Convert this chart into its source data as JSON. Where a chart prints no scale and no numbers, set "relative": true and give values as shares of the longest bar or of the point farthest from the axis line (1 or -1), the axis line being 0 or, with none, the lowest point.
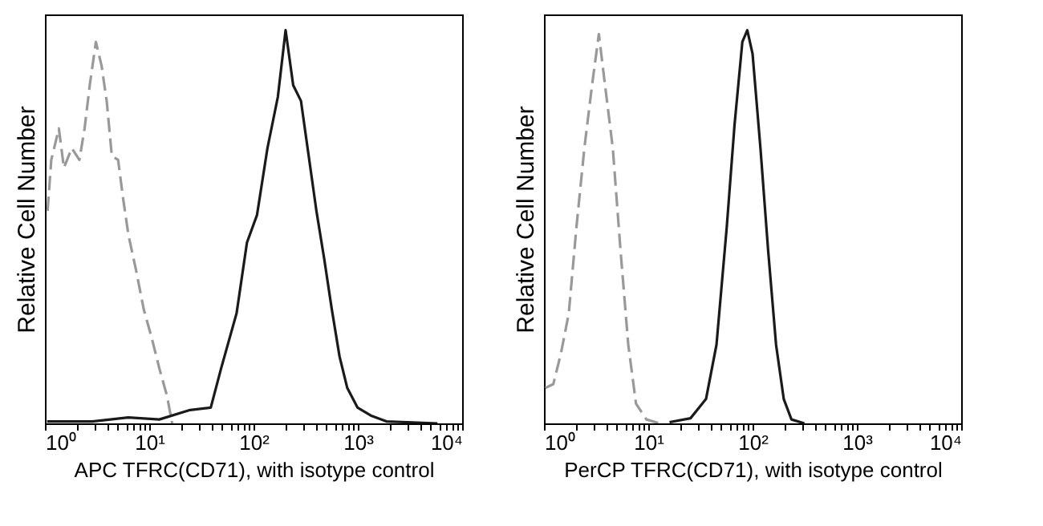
{
  "chart_data": [
    {
      "type": "line",
      "relative": true,
      "log": "x",
      "xlabel": "APC TFRC(CD71), with isotype control",
      "ylabel": "Relative Cell Number",
      "xlim": [
        1,
        10000
      ],
      "xticks": [
        {
          "value": 1,
          "label": "10⁰"
        },
        {
          "value": 2,
          "label": null
        },
        {
          "value": 3,
          "label": null
        },
        {
          "value": 4,
          "label": null
        },
        {
          "value": 5,
          "label": null
        },
        {
          "value": 6,
          "label": null
        },
        {
          "value": 7,
          "label": null
        },
        {
          "value": 8,
          "label": null
        },
        {
          "value": 9,
          "label": null
        },
        {
          "value": 10,
          "label": "10¹"
        },
        {
          "value": 20,
          "label": null
        },
        {
          "value": 30,
          "label": null
        },
        {
          "value": 40,
          "label": null
        },
        {
          "value": 50,
          "label": null
        },
        {
          "value": 60,
          "label": null
        },
        {
          "value": 70,
          "label": null
        },
        {
          "value": 80,
          "label": null
        },
        {
          "value": 90,
          "label": null
        },
        {
          "value": 100,
          "label": "10²"
        },
        {
          "value": 200,
          "label": null
        },
        {
          "value": 300,
          "label": null
        },
        {
          "value": 400,
          "label": null
        },
        {
          "value": 500,
          "label": null
        },
        {
          "value": 600,
          "label": null
        },
        {
          "value": 700,
          "label": null
        },
        {
          "value": 800,
          "label": null
        },
        {
          "value": 900,
          "label": null
        },
        {
          "value": 1000,
          "label": "10³"
        },
        {
          "value": 2000,
          "label": null
        },
        {
          "value": 3000,
          "label": null
        },
        {
          "value": 4000,
          "label": null
        },
        {
          "value": 5000,
          "label": null
        },
        {
          "value": 6000,
          "label": null
        },
        {
          "value": 7000,
          "label": null
        },
        {
          "value": 8000,
          "label": null
        },
        {
          "value": 9000,
          "label": null
        },
        {
          "value": 10000,
          "label": "10⁴"
        }
      ],
      "series": [
        {
          "color": "#999999",
          "line_style": "dashed",
          "x": [
            1.06,
            1.15,
            1.36,
            1.52,
            1.81,
            2.14,
            2.4,
            2.69,
            3.08,
            3.49,
            3.91,
            4.38,
            5.03,
            5.63,
            6.31,
            7.47,
            8.86,
            10.5,
            12.5,
            14.8,
            16.6
          ],
          "values": [
            0.54,
            0.67,
            0.75,
            0.65,
            0.7,
            0.67,
            0.75,
            0.86,
            0.97,
            0.91,
            0.82,
            0.68,
            0.67,
            0.57,
            0.48,
            0.39,
            0.29,
            0.22,
            0.14,
            0.07,
            0
          ]
        },
        {
          "color": "#1a1a1a",
          "line_style": "solid",
          "x": [
            1.05,
            2.85,
            6.3,
            12.5,
            24.7,
            38.9,
            48.9,
            68.8,
            86.5,
            108,
            136,
            171,
            203,
            240,
            285,
            338,
            401,
            475,
            563,
            668,
            792,
            995,
            1330,
            1880,
            2950,
            5800
          ],
          "values": [
            0.005,
            0.005,
            0.015,
            0.01,
            0.034,
            0.04,
            0.14,
            0.28,
            0.46,
            0.53,
            0.7,
            0.83,
            1,
            0.86,
            0.82,
            0.68,
            0.54,
            0.42,
            0.29,
            0.17,
            0.09,
            0.04,
            0.02,
            0.005,
            0.003,
            0
          ]
        }
      ]
    },
    {
      "type": "line",
      "relative": true,
      "log": "x",
      "xlabel": "PerCP TFRC(CD71), with isotype control",
      "ylabel": "Relative Cell Number",
      "xlim": [
        1,
        10000
      ],
      "xticks": [
        {
          "value": 1,
          "label": "10⁰"
        },
        {
          "value": 2,
          "label": null
        },
        {
          "value": 3,
          "label": null
        },
        {
          "value": 4,
          "label": null
        },
        {
          "value": 5,
          "label": null
        },
        {
          "value": 6,
          "label": null
        },
        {
          "value": 7,
          "label": null
        },
        {
          "value": 8,
          "label": null
        },
        {
          "value": 9,
          "label": null
        },
        {
          "value": 10,
          "label": "10¹"
        },
        {
          "value": 20,
          "label": null
        },
        {
          "value": 30,
          "label": null
        },
        {
          "value": 40,
          "label": null
        },
        {
          "value": 50,
          "label": null
        },
        {
          "value": 60,
          "label": null
        },
        {
          "value": 70,
          "label": null
        },
        {
          "value": 80,
          "label": null
        },
        {
          "value": 90,
          "label": null
        },
        {
          "value": 100,
          "label": "10²"
        },
        {
          "value": 200,
          "label": null
        },
        {
          "value": 300,
          "label": null
        },
        {
          "value": 400,
          "label": null
        },
        {
          "value": 500,
          "label": null
        },
        {
          "value": 600,
          "label": null
        },
        {
          "value": 700,
          "label": null
        },
        {
          "value": 800,
          "label": null
        },
        {
          "value": 900,
          "label": null
        },
        {
          "value": 1000,
          "label": "10³"
        },
        {
          "value": 2000,
          "label": null
        },
        {
          "value": 3000,
          "label": null
        },
        {
          "value": 4000,
          "label": null
        },
        {
          "value": 5000,
          "label": null
        },
        {
          "value": 6000,
          "label": null
        },
        {
          "value": 7000,
          "label": null
        },
        {
          "value": 8000,
          "label": null
        },
        {
          "value": 9000,
          "label": null
        },
        {
          "value": 10000,
          "label": "10⁴"
        }
      ],
      "series": [
        {
          "color": "#999999",
          "line_style": "dashed",
          "x": [
            1.03,
            1.23,
            1.46,
            1.73,
            2.05,
            2.44,
            2.89,
            3.36,
            3.85,
            4.57,
            5.42,
            6.43,
            7.63,
            9.6,
            12.8
          ],
          "values": [
            0.09,
            0.1,
            0.18,
            0.28,
            0.5,
            0.7,
            0.86,
            0.99,
            0.86,
            0.7,
            0.44,
            0.2,
            0.05,
            0.01,
            0
          ]
        },
        {
          "color": "#1a1a1a",
          "line_style": "solid",
          "x": [
            16,
            25.4,
            35.8,
            45.1,
            56.6,
            67.2,
            79.8,
            89,
            100,
            119,
            141,
            168,
            199,
            236,
            314
          ],
          "values": [
            0.003,
            0.013,
            0.062,
            0.2,
            0.5,
            0.76,
            0.97,
            1,
            0.94,
            0.7,
            0.44,
            0.2,
            0.062,
            0.01,
            0
          ]
        }
      ]
    }
  ]
}
